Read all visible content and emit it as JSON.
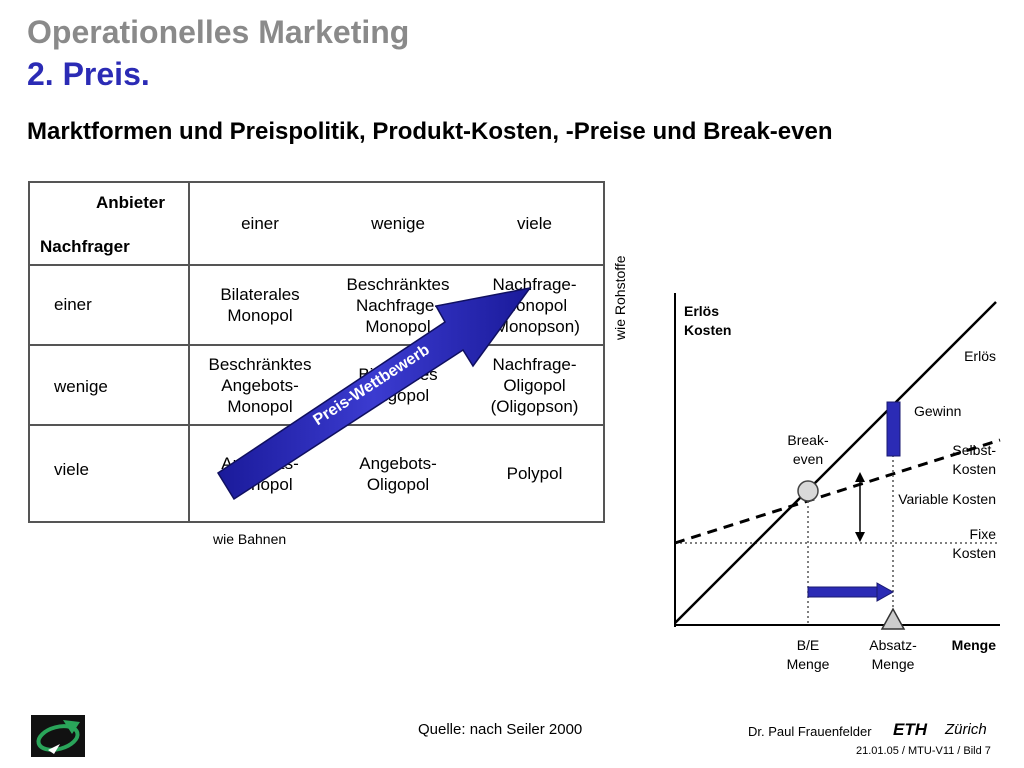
{
  "header": {
    "title": "Operationelles Marketing",
    "chapter": "2. Preis.",
    "subtitle": "Marktformen und Preispolitik, Produkt-Kosten, -Preise und Break-even"
  },
  "matrix": {
    "corner_top": "Anbieter",
    "corner_bottom": "Nachfrager",
    "columns": [
      "einer",
      "wenige",
      "viele"
    ],
    "rows": [
      {
        "label": "einer",
        "cells": [
          "Bilaterales\nMonopol",
          "Beschränktes\nNachfrage-\nMonopol",
          "Nachfrage-\nMonopol\n(Monopson)"
        ]
      },
      {
        "label": "wenige",
        "cells": [
          "Beschränktes\nAngebots-\nMonopol",
          "Bilaterales\nOligopol",
          "Nachfrage-\nOligopol\n(Oligopson)"
        ]
      },
      {
        "label": "viele",
        "cells": [
          "Angebots-\nMonopol",
          "Angebots-\nOligopol",
          "Polypol"
        ]
      }
    ],
    "arrow_label": "Preis-Wettbewerb",
    "note_bottom": "wie Bahnen",
    "note_side": "wie Rohstoffe",
    "arrow_color": "#2b2bb5"
  },
  "breakeven": {
    "y_axis_label": "Erlös\nKosten",
    "x_axis_label": "Menge",
    "erloes": "Erlös",
    "gewinn": "Gewinn",
    "selbstkosten": "Selbst-\nKosten",
    "variable_kosten": "Variable Kosten",
    "fixe_kosten": "Fixe\nKosten",
    "break_even": "Break-\neven",
    "be_menge": "B/E\nMenge",
    "absatz_menge": "Absatz-\nMenge",
    "accent_color": "#2b2bb5"
  },
  "footer": {
    "source": "Quelle: nach Seiler 2000",
    "author": "Dr. Paul Frauenfelder",
    "eth": "ETH",
    "zurich": "Zürich",
    "ref": "21.01.05 / MTU-V11 / Bild 7"
  }
}
